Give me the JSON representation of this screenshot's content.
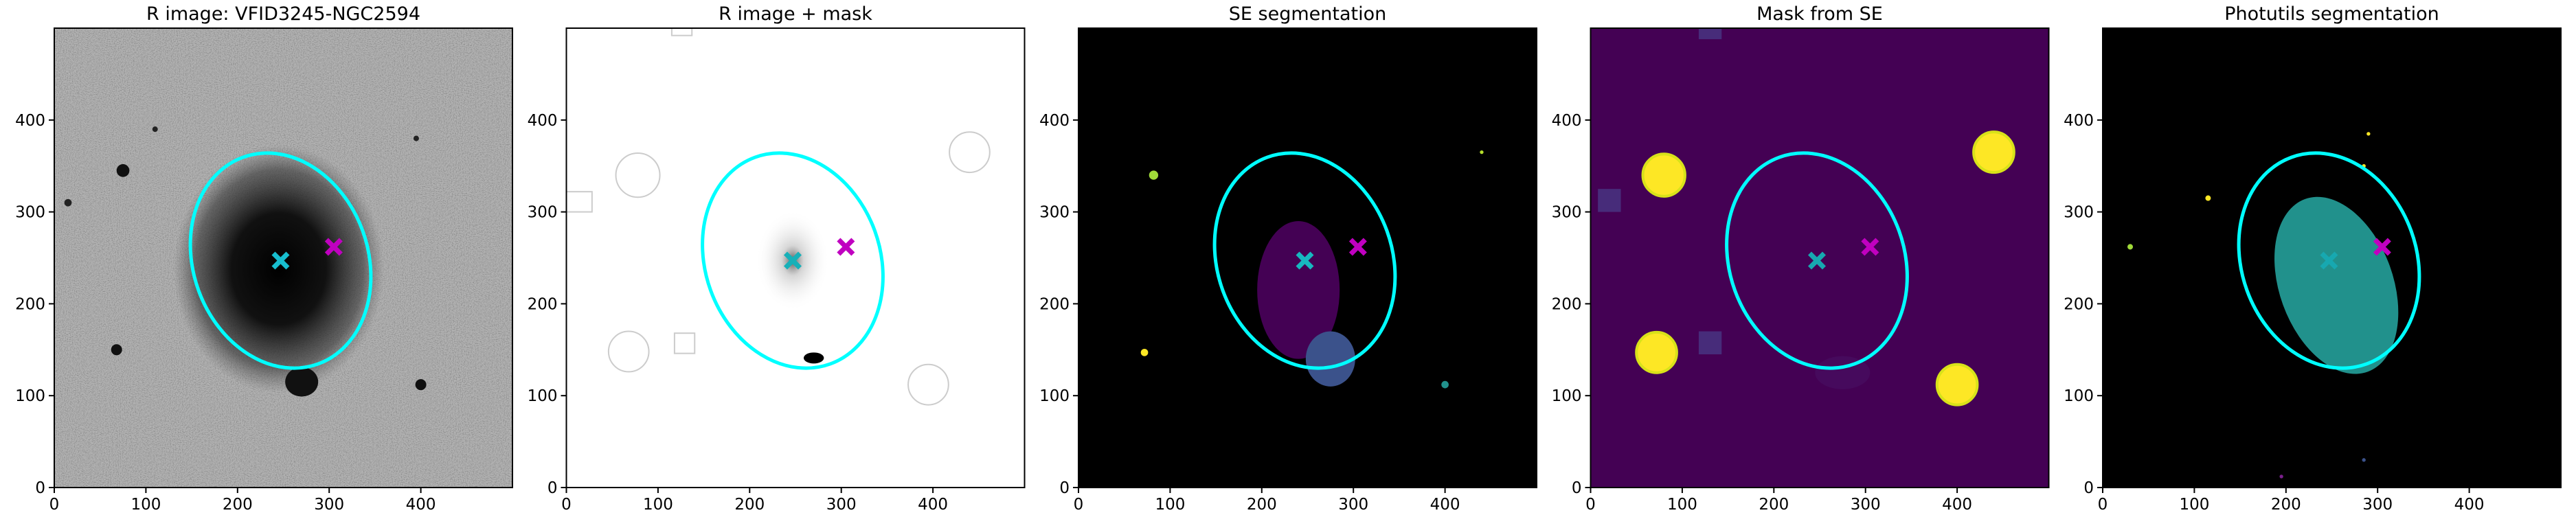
{
  "chart_data": [
    {
      "type": "image",
      "title": "R image: VFID3245-NGC2594",
      "xlim": [
        0,
        500
      ],
      "ylim": [
        0,
        500
      ],
      "xticks": [
        0,
        100,
        200,
        300,
        400
      ],
      "yticks": [
        0,
        100,
        200,
        300,
        400
      ],
      "ellipse": {
        "cx": 247,
        "cy": 247,
        "rx": 120,
        "ry": 95,
        "angle": 110,
        "color": "#00ffff"
      },
      "markers": [
        {
          "x": 247,
          "y": 247,
          "color": "#17becf"
        },
        {
          "x": 305,
          "y": 262,
          "color": "#c000c0"
        }
      ]
    },
    {
      "type": "image",
      "title": "R image + mask",
      "xlim": [
        0,
        500
      ],
      "ylim": [
        0,
        500
      ],
      "xticks": [
        0,
        100,
        200,
        300,
        400
      ],
      "yticks": [
        0,
        100,
        200,
        300,
        400
      ],
      "ellipse": {
        "cx": 247,
        "cy": 247,
        "rx": 120,
        "ry": 95,
        "angle": 110,
        "color": "#00ffff"
      },
      "markers": [
        {
          "x": 247,
          "y": 247,
          "color": "#17b0b8"
        },
        {
          "x": 305,
          "y": 262,
          "color": "#c000c0"
        }
      ]
    },
    {
      "type": "image",
      "title": "SE segmentation",
      "xlim": [
        0,
        500
      ],
      "ylim": [
        0,
        500
      ],
      "xticks": [
        0,
        100,
        200,
        300,
        400
      ],
      "yticks": [
        0,
        100,
        200,
        300,
        400
      ],
      "ellipse": {
        "cx": 247,
        "cy": 247,
        "rx": 120,
        "ry": 95,
        "angle": 110,
        "color": "#00ffff"
      },
      "markers": [
        {
          "x": 247,
          "y": 247,
          "color": "#17b8c0"
        },
        {
          "x": 305,
          "y": 262,
          "color": "#c000c0"
        }
      ]
    },
    {
      "type": "image",
      "title": "Mask from SE",
      "xlim": [
        0,
        500
      ],
      "ylim": [
        0,
        500
      ],
      "xticks": [
        0,
        100,
        200,
        300,
        400
      ],
      "yticks": [
        0,
        100,
        200,
        300,
        400
      ],
      "ellipse": {
        "cx": 247,
        "cy": 247,
        "rx": 120,
        "ry": 95,
        "angle": 110,
        "color": "#00ffff"
      },
      "markers": [
        {
          "x": 247,
          "y": 247,
          "color": "#17a8b0"
        },
        {
          "x": 305,
          "y": 262,
          "color": "#c000c0"
        }
      ]
    },
    {
      "type": "image",
      "title": "Photutils segmentation",
      "xlim": [
        0,
        500
      ],
      "ylim": [
        0,
        500
      ],
      "xticks": [
        0,
        100,
        200,
        300,
        400
      ],
      "yticks": [
        0,
        100,
        200,
        300,
        400
      ],
      "ellipse": {
        "cx": 247,
        "cy": 247,
        "rx": 120,
        "ry": 95,
        "angle": 110,
        "color": "#00ffff"
      },
      "markers": [
        {
          "x": 247,
          "y": 247,
          "color": "#17a8b0"
        },
        {
          "x": 305,
          "y": 262,
          "color": "#c000c0"
        }
      ]
    }
  ]
}
